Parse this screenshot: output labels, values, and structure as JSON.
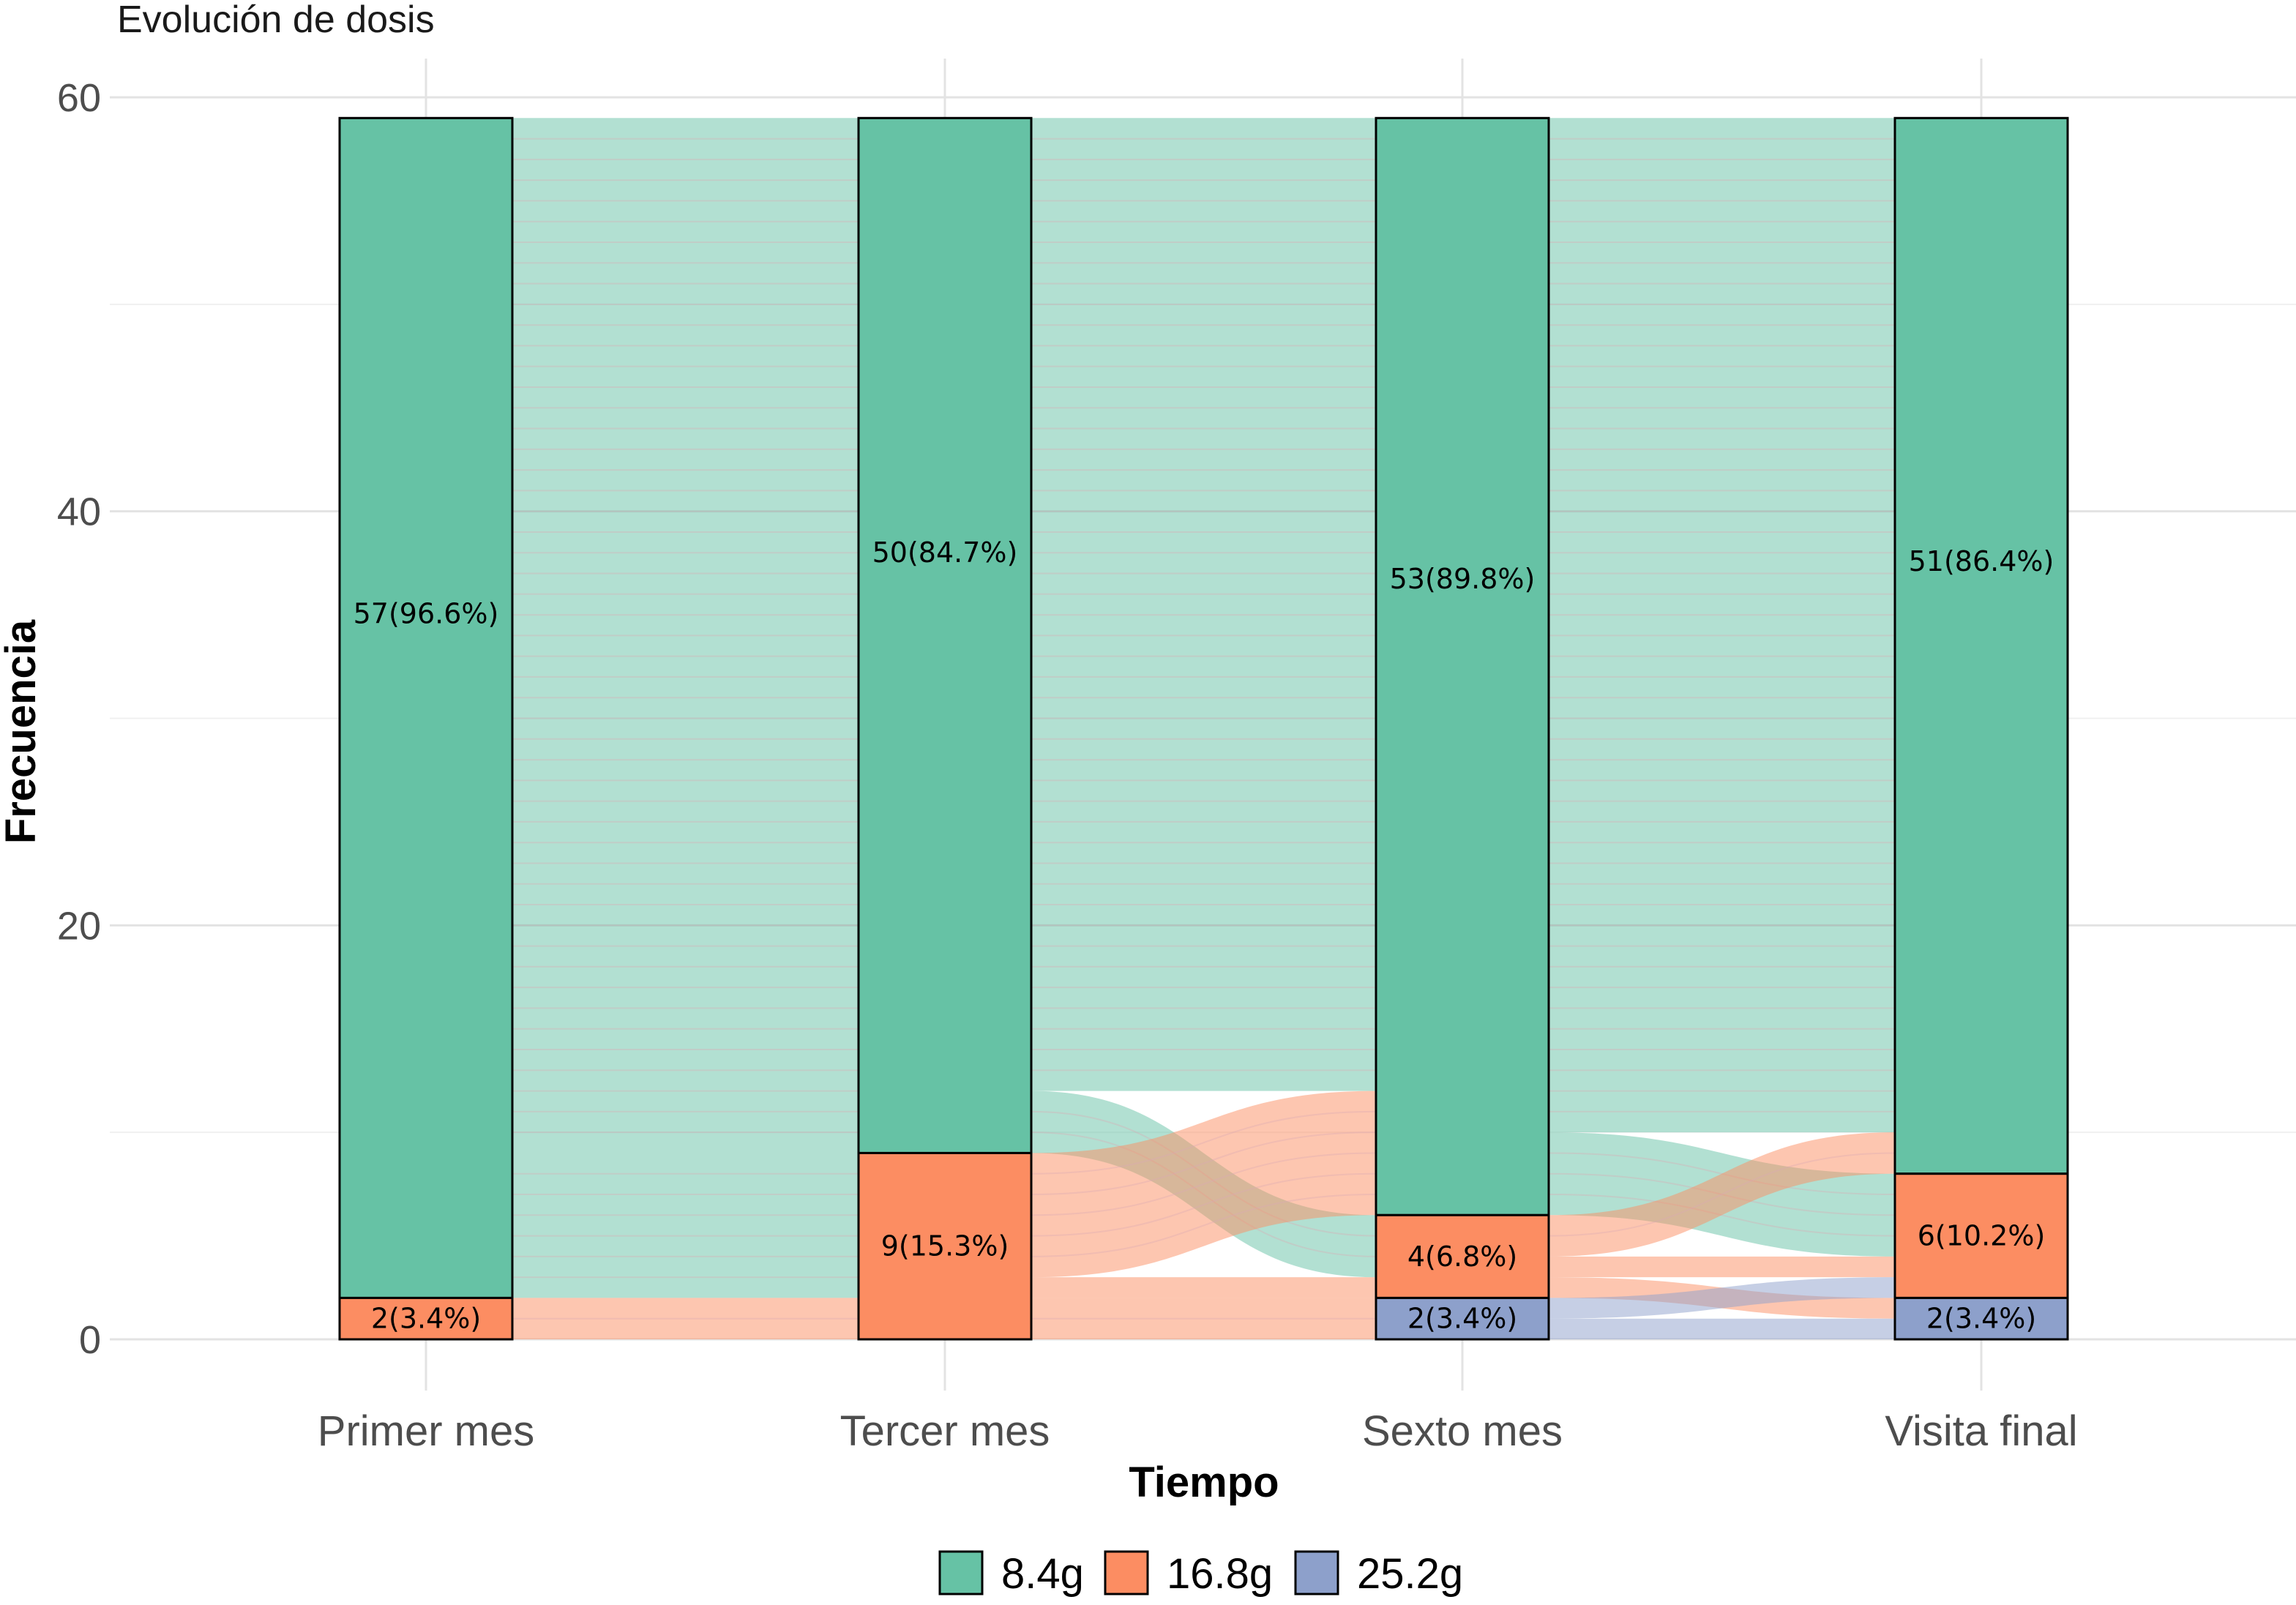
{
  "chart_data": {
    "type": "alluvial",
    "title": "Evolución de dosis",
    "xlabel": "Tiempo",
    "ylabel": "Frecuencia",
    "ylim": [
      -5,
      60
    ],
    "y_ticks": [
      0,
      20,
      40,
      60
    ],
    "grid": true,
    "legend_position": "bottom",
    "total": 59,
    "categories": [
      "Primer mes",
      "Tercer mes",
      "Sexto mes",
      "Visita final"
    ],
    "series": [
      {
        "name": "8.4g",
        "color": "#66C2A5",
        "values": [
          57,
          50,
          53,
          51
        ]
      },
      {
        "name": "16.8g",
        "color": "#FC8D62",
        "values": [
          2,
          9,
          4,
          6
        ]
      },
      {
        "name": "25.2g",
        "color": "#8DA0CB",
        "values": [
          0,
          0,
          2,
          2
        ]
      }
    ],
    "bar_labels": [
      [
        "57(96.6%)",
        "2(3.4%)",
        ""
      ],
      [
        "50(84.7%)",
        "9(15.3%)",
        ""
      ],
      [
        "53(89.8%)",
        "4(6.8%)",
        "2(3.4%)"
      ],
      [
        "51(86.4%)",
        "6(10.2%)",
        "2(3.4%)"
      ]
    ],
    "flows": [
      [
        {
          "from": "8.4g",
          "to": "8.4g",
          "value": 50
        },
        {
          "from": "8.4g",
          "to": "16.8g",
          "value": 7
        },
        {
          "from": "16.8g",
          "to": "16.8g",
          "value": 2
        }
      ],
      [
        {
          "from": "8.4g",
          "to": "8.4g",
          "value": 47
        },
        {
          "from": "8.4g",
          "to": "16.8g",
          "value": 3
        },
        {
          "from": "16.8g",
          "to": "8.4g",
          "value": 6
        },
        {
          "from": "16.8g",
          "to": "16.8g",
          "value": 1
        },
        {
          "from": "16.8g",
          "to": "25.2g",
          "value": 2
        }
      ],
      [
        {
          "from": "8.4g",
          "to": "8.4g",
          "value": 49
        },
        {
          "from": "8.4g",
          "to": "16.8g",
          "value": 4
        },
        {
          "from": "16.8g",
          "to": "8.4g",
          "value": 2
        },
        {
          "from": "16.8g",
          "to": "16.8g",
          "value": 1
        },
        {
          "from": "16.8g",
          "to": "25.2g",
          "value": 1
        },
        {
          "from": "25.2g",
          "to": "16.8g",
          "value": 1
        },
        {
          "from": "25.2g",
          "to": "25.2g",
          "value": 1
        }
      ]
    ]
  }
}
